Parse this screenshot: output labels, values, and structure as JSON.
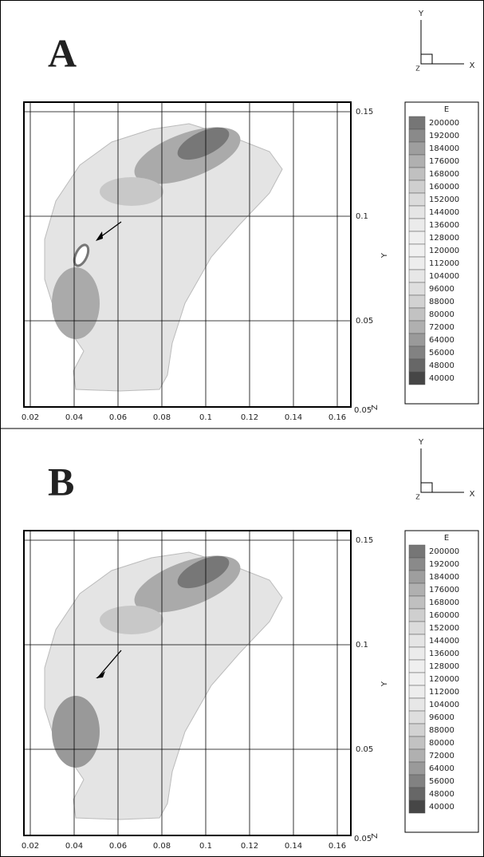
{
  "panels": [
    {
      "label": "A",
      "x_ticks": [
        0.02,
        0.04,
        0.06,
        0.08,
        0.1,
        0.12,
        0.14,
        0.16
      ],
      "y_ticks": [
        0.15,
        0.1,
        0.05
      ],
      "y_axis_label": "Y",
      "corner_tick": 0.05,
      "corner_label": "Z",
      "legend": {
        "title": "E",
        "levels": [
          200000,
          192000,
          184000,
          176000,
          168000,
          160000,
          152000,
          144000,
          136000,
          128000,
          120000,
          112000,
          104000,
          96000,
          88000,
          80000,
          72000,
          64000,
          56000,
          48000,
          40000
        ]
      },
      "triad": {
        "y": "Y",
        "x": "X",
        "z": "Z"
      }
    },
    {
      "label": "B",
      "x_ticks": [
        0.02,
        0.04,
        0.06,
        0.08,
        0.1,
        0.12,
        0.14,
        0.16
      ],
      "y_ticks": [
        0.15,
        0.1,
        0.05
      ],
      "y_axis_label": "Y",
      "corner_tick": 0.05,
      "corner_label": "Z",
      "legend": {
        "title": "E",
        "levels": [
          200000,
          192000,
          184000,
          176000,
          168000,
          160000,
          152000,
          144000,
          136000,
          128000,
          120000,
          112000,
          104000,
          96000,
          88000,
          80000,
          72000,
          64000,
          56000,
          48000,
          40000
        ]
      },
      "triad": {
        "y": "Y",
        "x": "X",
        "z": "Z"
      }
    }
  ]
}
